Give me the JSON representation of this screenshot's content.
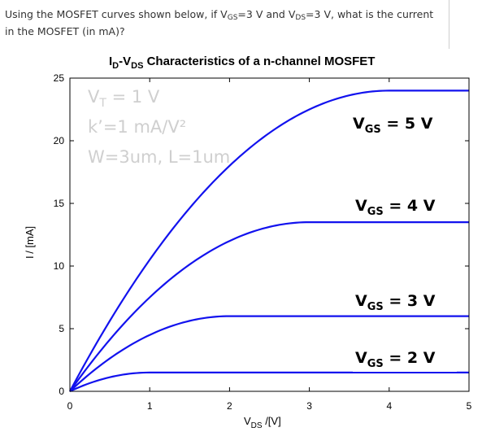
{
  "question": {
    "part1": "Using the MOSFET curves shown below, if V",
    "sub1": "GS",
    "part2": "=3 V and V",
    "sub2": "DS",
    "part3": "=3 V, what is the current in the MOSFET (in mA)?"
  },
  "chart_data": {
    "type": "line",
    "title": "I",
    "title_sub1": "D",
    "title_mid": "-V",
    "title_sub2": "DS",
    "title_rest": " Characteristics of a n-channel MOSFET",
    "xlabel_main": "V",
    "xlabel_sub": "DS",
    "xlabel_unit": " /[V]",
    "ylabel": "I / [mA]",
    "ylabel_sub": "D",
    "xlim": [
      0,
      5
    ],
    "ylim": [
      0,
      25
    ],
    "x_ticks": [
      0,
      1,
      2,
      3,
      4,
      5
    ],
    "y_ticks": [
      0,
      5,
      10,
      15,
      20,
      25
    ],
    "x_tick_labels": [
      "0",
      "1",
      "2",
      "3",
      "4",
      "5"
    ],
    "y_tick_labels": [
      "0",
      "5",
      "10",
      "15",
      "20",
      "25"
    ],
    "grid": false,
    "line_color": "#1212ee",
    "model": {
      "Vt": 1,
      "kprime": 1,
      "W_over_L": 3
    },
    "annotations": [
      "Vₜ = 1 V",
      "k’=1 mA/V²",
      "W=3um, L=1um"
    ],
    "annotation_main": [
      "V",
      "k’=1 mA/V²",
      "W=3um, L=1um"
    ],
    "annotation_vt_sub": "T",
    "annotation_vt_rest": " = 1 V",
    "series": [
      {
        "name": "V_GS = 2 V",
        "label_main": "V",
        "label_sub": "GS",
        "label_rest": " = 2 V",
        "vgs": 2,
        "saturation_current": 1.5
      },
      {
        "name": "V_GS = 3 V",
        "label_main": "V",
        "label_sub": "GS",
        "label_rest": " = 3 V",
        "vgs": 3,
        "saturation_current": 6
      },
      {
        "name": "V_GS = 4 V",
        "label_main": "V",
        "label_sub": "GS",
        "label_rest": " = 4 V",
        "vgs": 4,
        "saturation_current": 13.5
      },
      {
        "name": "V_GS = 5 V",
        "label_main": "V",
        "label_sub": "GS",
        "label_rest": " = 5 V",
        "vgs": 5,
        "saturation_current": 24
      }
    ]
  }
}
